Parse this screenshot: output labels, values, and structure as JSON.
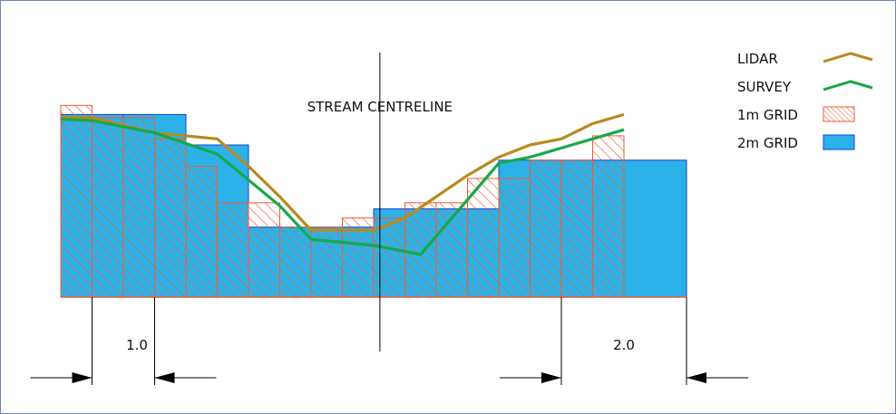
{
  "labels": {
    "centreline": "STREAM CENTRELINE",
    "dim_left": "1.0",
    "dim_right": "2.0"
  },
  "legend": [
    {
      "label": "LIDAR",
      "kind": "line",
      "color": "#b98a1d"
    },
    {
      "label": "SURVEY",
      "kind": "line",
      "color": "#17a84a"
    },
    {
      "label": "1m GRID",
      "kind": "hatch",
      "color": "#f05a32"
    },
    {
      "label": "2m GRID",
      "kind": "fill",
      "color": "#2ab2e8"
    }
  ],
  "colors": {
    "lidar": "#b98a1d",
    "survey": "#17a84a",
    "grid1m_stroke": "#f05a32",
    "grid2m_fill": "#2ab2e8",
    "grid2m_stroke": "#1a3fd6",
    "frame": "#6b86b4"
  },
  "grid_2m": [
    {
      "from": 0,
      "to": 2,
      "top": 6.0
    },
    {
      "from": 2,
      "to": 4,
      "top": 6.0
    },
    {
      "from": 4,
      "to": 6,
      "top": 5.0
    },
    {
      "from": 6,
      "to": 8,
      "top": 2.3
    },
    {
      "from": 8,
      "to": 10,
      "top": 2.3
    },
    {
      "from": 10,
      "to": 12,
      "top": 2.9
    },
    {
      "from": 12,
      "to": 14,
      "top": 2.9
    },
    {
      "from": 14,
      "to": 16,
      "top": 4.5
    },
    {
      "from": 16,
      "to": 18,
      "top": 4.5
    },
    {
      "from": 18,
      "to": 20,
      "top": 4.5
    }
  ],
  "grid_1m": [
    {
      "from": 0,
      "to": 1,
      "top": 6.3
    },
    {
      "from": 1,
      "to": 2,
      "top": 5.9
    },
    {
      "from": 2,
      "to": 3,
      "top": 5.9
    },
    {
      "from": 3,
      "to": 4,
      "top": 5.2
    },
    {
      "from": 4,
      "to": 5,
      "top": 4.3
    },
    {
      "from": 5,
      "to": 6,
      "top": 3.1
    },
    {
      "from": 6,
      "to": 7,
      "top": 3.1
    },
    {
      "from": 7,
      "to": 8,
      "top": 2.3
    },
    {
      "from": 8,
      "to": 9,
      "top": 2.3
    },
    {
      "from": 9,
      "to": 10,
      "top": 2.6
    },
    {
      "from": 10,
      "to": 11,
      "top": 2.6
    },
    {
      "from": 11,
      "to": 12,
      "top": 3.1
    },
    {
      "from": 12,
      "to": 13,
      "top": 3.1
    },
    {
      "from": 13,
      "to": 14,
      "top": 3.9
    },
    {
      "from": 14,
      "to": 15,
      "top": 3.9
    },
    {
      "from": 15,
      "to": 16,
      "top": 4.5
    },
    {
      "from": 16,
      "to": 17,
      "top": 4.5
    },
    {
      "from": 17,
      "to": 18,
      "top": 5.3
    }
  ],
  "lidar": [
    [
      0,
      5.9
    ],
    [
      1,
      5.9
    ],
    [
      3,
      5.4
    ],
    [
      5,
      5.2
    ],
    [
      6,
      4.3
    ],
    [
      7,
      3.3
    ],
    [
      8,
      2.2
    ],
    [
      9,
      2.2
    ],
    [
      10,
      2.2
    ],
    [
      11,
      2.6
    ],
    [
      12,
      3.3
    ],
    [
      13,
      4.0
    ],
    [
      14,
      4.6
    ],
    [
      15,
      5.0
    ],
    [
      16,
      5.2
    ],
    [
      17,
      5.7
    ],
    [
      18,
      6.0
    ]
  ],
  "survey": [
    [
      0,
      5.85
    ],
    [
      1,
      5.8
    ],
    [
      3,
      5.4
    ],
    [
      5,
      4.7
    ],
    [
      7,
      3.0
    ],
    [
      8,
      1.9
    ],
    [
      9,
      1.8
    ],
    [
      10,
      1.7
    ],
    [
      11,
      1.5
    ],
    [
      11.5,
      1.4
    ],
    [
      14,
      4.4
    ],
    [
      15,
      4.6
    ],
    [
      16,
      4.9
    ],
    [
      17,
      5.2
    ],
    [
      18,
      5.5
    ]
  ],
  "centreline_x": 10.2,
  "dimensions": [
    {
      "text_key": "dim_left",
      "a": 1.0,
      "b": 3.0
    },
    {
      "text_key": "dim_right",
      "a": 16.0,
      "b": 20.0
    }
  ]
}
